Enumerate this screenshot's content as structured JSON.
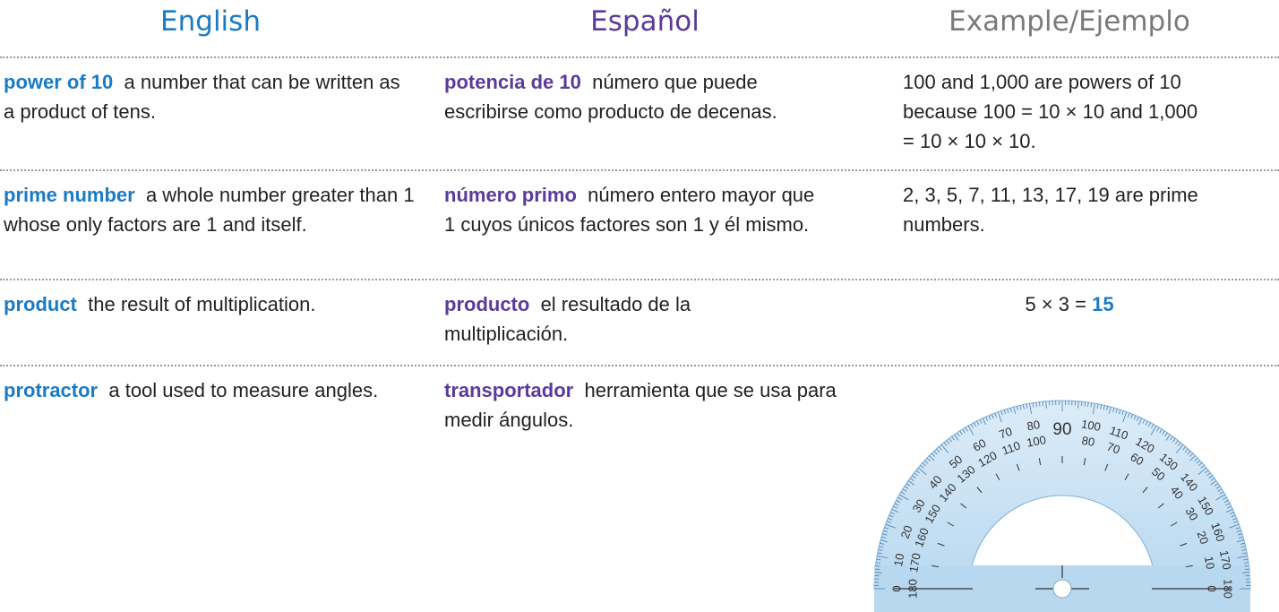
{
  "header": {
    "english": "English",
    "spanish": "Español",
    "example": "Example/Ejemplo"
  },
  "rows": [
    {
      "term": "power of 10",
      "definition": "a number that can be written as a product of tens.",
      "termino": "potencia de 10",
      "definicion": "número que puede escribirse como producto de decenas.",
      "example": "100 and 1,000 are powers of 10 because 100 = 10 × 10 and 1,000 = 10 × 10 × 10."
    },
    {
      "term": "prime number",
      "definition": "a whole number greater than 1 whose only factors are 1 and itself.",
      "termino": "número primo",
      "definicion": "número entero mayor que 1 cuyos únicos factores son 1 y él mismo.",
      "example": "2, 3, 5, 7, 11, 13, 17, 19 are prime numbers."
    },
    {
      "term": "product",
      "definition": "the result of multiplication.",
      "termino": "producto",
      "definicion": "el resultado de la multiplicación.",
      "example": "5 × 3 =",
      "example_answer": "15"
    },
    {
      "term": "protractor",
      "definition": "a tool used to measure angles.",
      "termino": "transportador",
      "definicion": "herramienta que se usa para medir ángulos.",
      "protractor": {
        "center_label": 90,
        "outer_labels": [
          0,
          10,
          20,
          30,
          40,
          50,
          60,
          70,
          80,
          100,
          110,
          120,
          130,
          140,
          150,
          160,
          170,
          180
        ],
        "inner_labels": [
          180,
          170,
          160,
          150,
          140,
          130,
          120,
          110,
          100,
          80,
          70,
          60,
          50,
          40,
          30,
          20,
          10,
          0
        ]
      }
    }
  ]
}
